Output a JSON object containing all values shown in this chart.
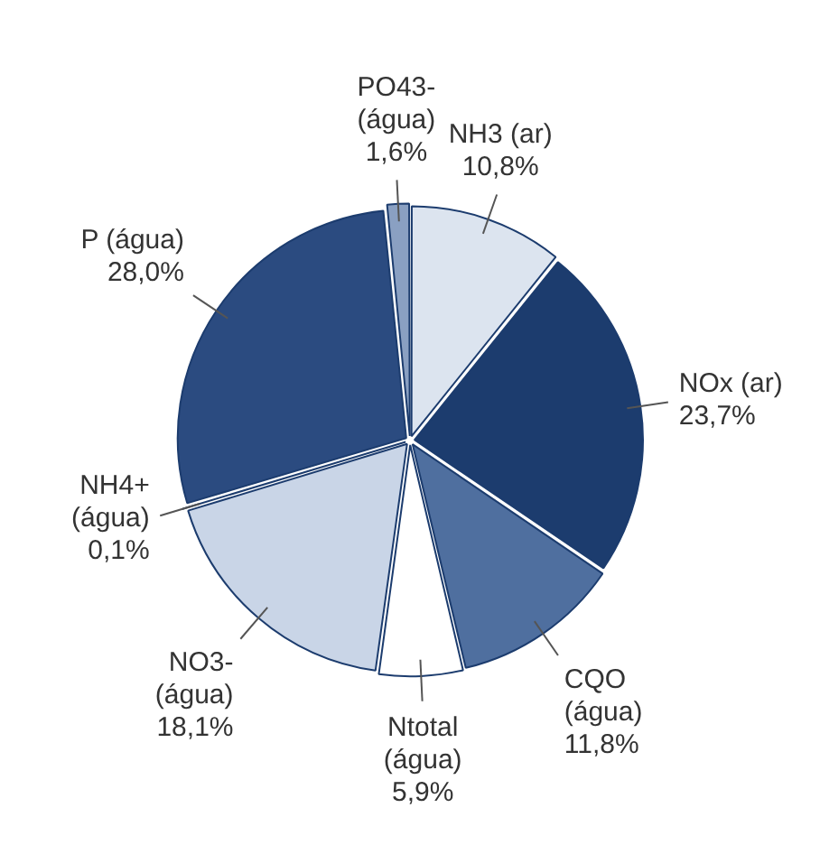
{
  "chart_data": {
    "type": "pie",
    "categories": [
      "NH3 (ar)",
      "NOx (ar)",
      "CQO (água)",
      "Ntotal (água)",
      "NO3- (água)",
      "NH4+ (água)",
      "P (água)",
      "PO43- (água)"
    ],
    "values": [
      10.8,
      23.7,
      11.8,
      5.9,
      18.1,
      0.1,
      28.0,
      1.6
    ],
    "value_labels": [
      "10,8%",
      "23,7%",
      "11,8%",
      "5,9%",
      "18,1%",
      "0,1%",
      "28,0%",
      "1,6%"
    ],
    "colors": [
      "#dce4ef",
      "#1c3c6e",
      "#4f6f9f",
      "#ffffff",
      "#c9d5e7",
      "#9fb3cf",
      "#2b4b80",
      "#8aa0c2"
    ],
    "legend": false
  }
}
